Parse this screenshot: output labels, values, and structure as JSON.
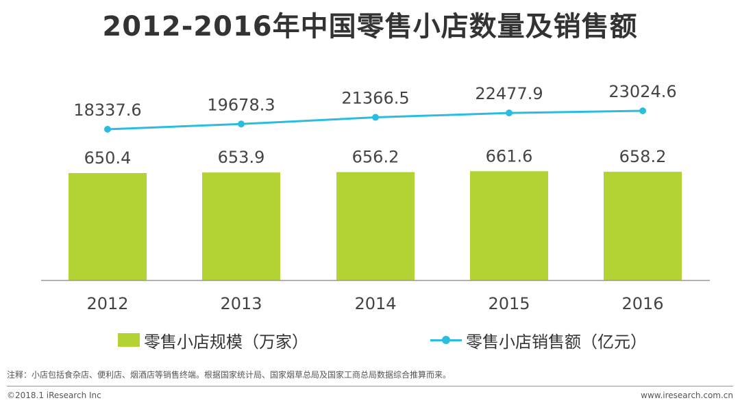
{
  "title": "2012-2016年中国零售小店数量及销售额",
  "chart_data": {
    "type": "bar",
    "categories": [
      "2012",
      "2013",
      "2014",
      "2015",
      "2016"
    ],
    "series": [
      {
        "name": "零售小店规模（万家）",
        "type": "bar",
        "values": [
          650.4,
          653.9,
          656.2,
          661.6,
          658.2
        ],
        "color": "#b3d335"
      },
      {
        "name": "零售小店销售额（亿元）",
        "type": "line",
        "values": [
          18337.6,
          19678.3,
          21366.5,
          22477.9,
          23024.6
        ],
        "color": "#2bbde0"
      }
    ],
    "value_labels_bar": [
      "650.4",
      "653.9",
      "656.2",
      "661.6",
      "658.2"
    ],
    "value_labels_line": [
      "18337.6",
      "19678.3",
      "21366.5",
      "22477.9",
      "23024.6"
    ],
    "legend_position": "bottom",
    "grid": false
  },
  "legend": {
    "bar_label": "零售小店规模（万家）",
    "line_label": "零售小店销售额（亿元）"
  },
  "footnote": "注释：小店包括食杂店、便利店、烟酒店等销售终端。根据国家统计局、国家烟草总局及国家工商总局数据综合推算而来。",
  "copyright": "©2018.1 iResearch Inc",
  "website": "www.iresearch.com.cn"
}
